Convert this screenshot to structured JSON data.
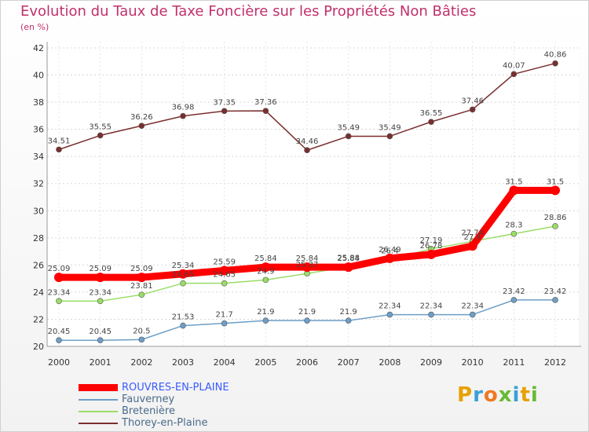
{
  "title": "Evolution du Taux de Taxe Foncière sur les Propriétés Non Bâties",
  "unit_label": "(en %)",
  "logo_text": "Proxiti",
  "chart_data": {
    "type": "line",
    "title": "Evolution du Taux de Taxe Foncière sur les Propriétés Non Bâties",
    "ylabel": "(en %)",
    "xlabel": "",
    "categories": [
      "2000",
      "2001",
      "2002",
      "2003",
      "2004",
      "2005",
      "2006",
      "2007",
      "2008",
      "2009",
      "2010",
      "2011",
      "2012"
    ],
    "ylim": [
      20,
      42
    ],
    "yticks": [
      20,
      22,
      24,
      26,
      28,
      30,
      32,
      34,
      36,
      38,
      40,
      42
    ],
    "grid": true,
    "series": [
      {
        "name": "ROUVRES-EN-PLAINE",
        "color": "#ff0000",
        "values": [
          25.09,
          25.09,
          25.09,
          25.34,
          25.59,
          25.84,
          25.84,
          25.84,
          26.49,
          26.78,
          27.4,
          31.5,
          31.5
        ],
        "labels": [
          "25.09",
          "25.09",
          "25.09",
          "25.34",
          "25.59",
          "25.84",
          "25.84",
          "25.84",
          "26.49",
          "26.78",
          "27.4",
          "31.5",
          "31.5"
        ]
      },
      {
        "name": "Fauverney",
        "color": "#6d9ec7",
        "values": [
          20.45,
          20.45,
          20.5,
          21.53,
          21.7,
          21.9,
          21.9,
          21.9,
          22.34,
          22.34,
          22.34,
          23.42,
          23.42
        ],
        "labels": [
          "20.45",
          "20.45",
          "20.5",
          "21.53",
          "21.7",
          "21.9",
          "21.9",
          "21.9",
          "22.34",
          "22.34",
          "22.34",
          "23.42",
          "23.42"
        ]
      },
      {
        "name": "Bretenière",
        "color": "#99dd66",
        "values": [
          23.34,
          23.34,
          23.81,
          24.65,
          24.65,
          24.9,
          25.37,
          25.88,
          26.4,
          27.19,
          27.74,
          28.3,
          28.86
        ],
        "labels": [
          "23.34",
          "23.34",
          "23.81",
          "24.65",
          "24.65",
          "24.9",
          "25.37",
          "25.88",
          "26.4",
          "27.19",
          "27.74",
          "28.3",
          "28.86"
        ]
      },
      {
        "name": "Thorey-en-Plaine",
        "color": "#7a2e2e",
        "values": [
          34.51,
          35.55,
          36.26,
          36.98,
          37.35,
          37.36,
          34.46,
          35.49,
          35.49,
          36.55,
          37.46,
          40.07,
          40.86
        ],
        "labels": [
          "34.51",
          "35.55",
          "36.26",
          "36.98",
          "37.35",
          "37.36",
          "34.46",
          "35.49",
          "35.49",
          "36.55",
          "37.46",
          "40.07",
          "40.86"
        ]
      }
    ]
  }
}
